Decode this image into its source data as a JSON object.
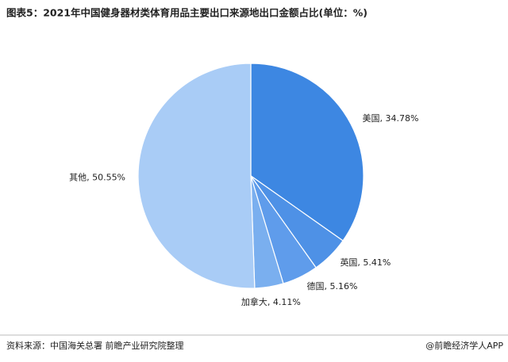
{
  "chart_data": {
    "type": "pie",
    "title": "图表5：2021年中国健身器材类体育用品主要出口来源地出口金额占比(单位：%)",
    "values": [
      34.78,
      5.41,
      5.16,
      4.11,
      50.55
    ],
    "value_labels": [
      "美国, 34.78%",
      "英国, 5.41%",
      "德国, 5.16%",
      "加拿大, 4.11%",
      "其他, 50.55%"
    ],
    "colors": [
      "#3d87e2",
      "#4e91e6",
      "#5f9ceb",
      "#7aafef",
      "#a9ccf6"
    ]
  },
  "source": "资料来源：中国海关总署 前瞻产业研究院整理",
  "credit": "@前瞻经济学人APP"
}
